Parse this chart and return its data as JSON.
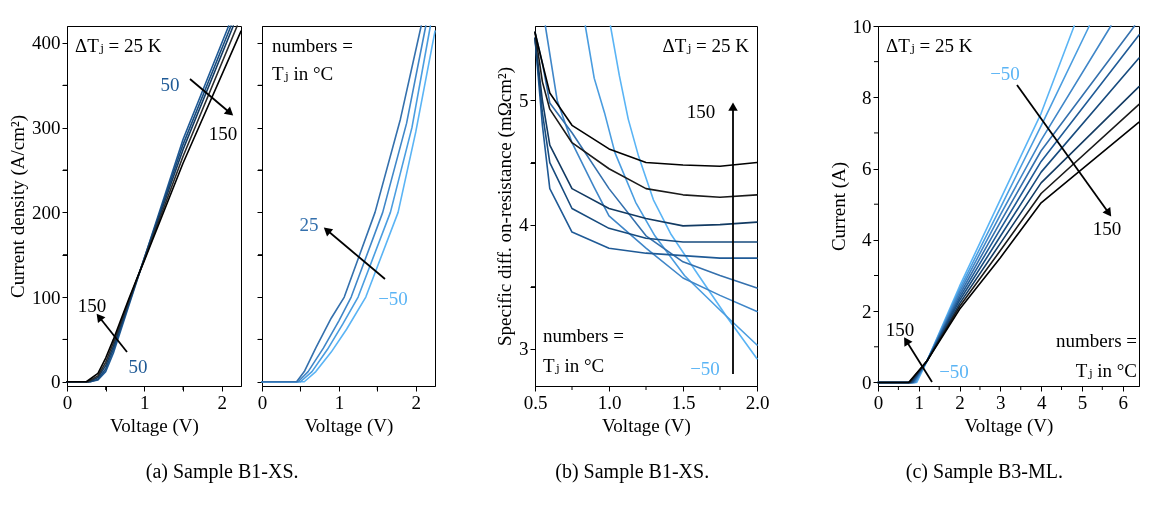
{
  "chart_data": [
    {
      "type": "line",
      "title": "(a) Sample B1-XS.",
      "xlabel": "Voltage (V)",
      "ylabel": "Current density (A/cm²)",
      "xlim": [
        0,
        2.25
      ],
      "xticks": [
        0,
        {
          "value": 0.5,
          "label": null
        },
        1,
        {
          "value": 1.5,
          "label": null
        },
        2
      ],
      "ylim": [
        -5,
        420
      ],
      "yticks": [
        0,
        {
          "value": 50,
          "label": null
        },
        100,
        {
          "value": 150,
          "label": null
        },
        200,
        {
          "value": 250,
          "label": null
        },
        300,
        {
          "value": 350,
          "label": null
        },
        400
      ],
      "series": [
        {
          "color": "#1f5a96",
          "x": [
            0,
            0.3,
            0.4,
            0.5,
            0.6,
            0.7,
            0.8,
            0.9,
            1.0,
            1.5,
            2.09
          ],
          "values": [
            0,
            0,
            2,
            12,
            34,
            62,
            90,
            118,
            146,
            286,
            420
          ]
        },
        {
          "color": "#174b7e",
          "x": [
            0,
            0.3,
            0.4,
            0.5,
            0.6,
            0.7,
            0.8,
            0.9,
            1.0,
            1.5,
            2.12
          ],
          "values": [
            0,
            0,
            3,
            15,
            38,
            65,
            92,
            119,
            146,
            280,
            420
          ]
        },
        {
          "color": "#123a62",
          "x": [
            0,
            0.28,
            0.4,
            0.5,
            0.6,
            0.7,
            0.8,
            0.9,
            1.0,
            1.5,
            2.15
          ],
          "values": [
            0,
            0,
            5,
            19,
            42,
            68,
            94,
            120,
            145,
            274,
            420
          ]
        },
        {
          "color": "#2a2a2a",
          "x": [
            0,
            0.27,
            0.4,
            0.5,
            0.6,
            0.7,
            0.8,
            0.9,
            1.0,
            1.5,
            2.2
          ],
          "values": [
            0,
            0,
            7,
            23,
            46,
            71,
            96,
            120,
            144,
            266,
            420
          ]
        },
        {
          "color": "#000000",
          "x": [
            0,
            0.25,
            0.4,
            0.5,
            0.6,
            0.7,
            0.8,
            0.9,
            1.0,
            1.5,
            2.25
          ],
          "values": [
            0,
            0,
            10,
            28,
            50,
            74,
            98,
            121,
            143,
            258,
            414
          ]
        }
      ],
      "annotations": [
        "ΔTⱼ = 25 K",
        "50",
        "150",
        "50",
        "150"
      ]
    },
    {
      "type": "line",
      "xlabel": "Voltage (V)",
      "tick_labels": "x",
      "xlim": [
        0,
        2.25
      ],
      "xticks": [
        0,
        {
          "value": 0.5,
          "label": null
        },
        1,
        {
          "value": 1.5,
          "label": null
        },
        2
      ],
      "ylim": [
        -5,
        420
      ],
      "yticks": [
        0,
        {
          "value": 50,
          "label": null
        },
        100,
        {
          "value": 150,
          "label": null
        },
        200,
        {
          "value": 250,
          "label": null
        },
        300,
        {
          "value": 350,
          "label": null
        },
        400
      ],
      "series": [
        {
          "color": "#5ab4f5",
          "x": [
            0,
            0.55,
            0.7,
            0.9,
            1.1,
            1.35,
            1.77,
            2.0,
            2.25
          ],
          "values": [
            0,
            0,
            12,
            35,
            62,
            100,
            200,
            295,
            414
          ]
        },
        {
          "color": "#4a9de0",
          "x": [
            0,
            0.5,
            0.65,
            0.85,
            1.05,
            1.25,
            1.67,
            1.95,
            2.19
          ],
          "values": [
            0,
            0,
            12,
            38,
            68,
            100,
            200,
            300,
            420
          ]
        },
        {
          "color": "#3f86c8",
          "x": [
            0,
            0.47,
            0.6,
            0.8,
            1.0,
            1.16,
            1.57,
            1.88,
            2.13
          ],
          "values": [
            0,
            0,
            12,
            40,
            72,
            100,
            200,
            305,
            420
          ]
        },
        {
          "color": "#3470ad",
          "x": [
            0,
            0.45,
            0.55,
            0.7,
            0.9,
            1.07,
            1.47,
            1.8,
            2.07
          ],
          "values": [
            0,
            0,
            12,
            40,
            75,
            100,
            200,
            310,
            420
          ]
        }
      ],
      "annotations": [
        "numbers =",
        "Tⱼ in °C",
        "−50",
        "25"
      ]
    },
    {
      "type": "line",
      "title": "(b) Sample B1-XS.",
      "xlabel": "Voltage (V)",
      "ylabel": "Specific diff. on-resistance (mΩcm²)",
      "xlim": [
        0.5,
        2.0
      ],
      "xticks": [
        0.5,
        {
          "value": 0.75,
          "label": null
        },
        {
          "value": 1,
          "label": "1.0"
        },
        {
          "value": 1.25,
          "label": null
        },
        1.5,
        {
          "value": 1.75,
          "label": null
        },
        {
          "value": 2,
          "label": "2.0"
        }
      ],
      "ylim": [
        2.7,
        5.6
      ],
      "yticks": [
        3,
        {
          "value": 3.5,
          "label": null
        },
        4,
        {
          "value": 4.5,
          "label": null
        },
        5
      ],
      "series": [
        {
          "color": "#5ab4f5",
          "x": [
            1.01,
            1.07,
            1.13,
            1.2,
            1.3,
            1.42,
            1.6,
            1.8,
            2.0
          ],
          "values": [
            5.6,
            5.2,
            4.85,
            4.55,
            4.2,
            3.92,
            3.6,
            3.25,
            2.92
          ]
        },
        {
          "color": "#4a9de0",
          "x": [
            0.84,
            0.9,
            0.97,
            1.04,
            1.18,
            1.31,
            1.51,
            1.76,
            2.0
          ],
          "values": [
            5.6,
            5.18,
            4.9,
            4.58,
            4.18,
            3.91,
            3.59,
            3.3,
            3.03
          ]
        },
        {
          "color": "#3f86c8",
          "x": [
            0.57,
            0.65,
            0.75,
            0.9,
            1.0,
            1.25,
            1.5,
            1.75,
            2.0
          ],
          "values": [
            5.6,
            5.0,
            4.66,
            4.3,
            4.07,
            3.81,
            3.57,
            3.43,
            3.3
          ]
        },
        {
          "color": "#3470ad",
          "x": [
            0.5,
            0.55,
            0.6,
            0.75,
            1.0,
            1.25,
            1.5,
            1.75,
            2.0
          ],
          "values": [
            5.55,
            5.3,
            4.98,
            4.74,
            4.29,
            3.91,
            3.7,
            3.59,
            3.49
          ]
        },
        {
          "color": "#1f5a96",
          "x": [
            0.5,
            0.55,
            0.6,
            0.75,
            1.0,
            1.25,
            1.5,
            1.75,
            2.0
          ],
          "values": [
            5.5,
            4.8,
            4.29,
            3.94,
            3.81,
            3.77,
            3.75,
            3.73,
            3.73
          ]
        },
        {
          "color": "#174b7e",
          "x": [
            0.5,
            0.55,
            0.6,
            0.75,
            1.0,
            1.25,
            1.5,
            1.75,
            2.0
          ],
          "values": [
            5.5,
            4.9,
            4.5,
            4.13,
            3.97,
            3.89,
            3.86,
            3.86,
            3.86
          ]
        },
        {
          "color": "#123a62",
          "x": [
            0.5,
            0.55,
            0.6,
            0.75,
            1.0,
            1.25,
            1.5,
            1.75,
            2.0
          ],
          "values": [
            5.5,
            5.0,
            4.64,
            4.29,
            4.13,
            4.05,
            3.99,
            4.0,
            4.02
          ]
        },
        {
          "color": "#1a1a1a",
          "x": [
            0.5,
            0.55,
            0.6,
            0.75,
            1.0,
            1.25,
            1.5,
            1.75,
            2.0
          ],
          "values": [
            5.55,
            5.15,
            4.93,
            4.66,
            4.45,
            4.29,
            4.24,
            4.22,
            4.24
          ]
        },
        {
          "color": "#000000",
          "x": [
            0.5,
            0.55,
            0.6,
            0.75,
            1.0,
            1.25,
            1.5,
            1.75,
            2.0
          ],
          "values": [
            5.55,
            5.3,
            5.06,
            4.8,
            4.61,
            4.5,
            4.48,
            4.47,
            4.5
          ]
        }
      ],
      "annotations": [
        "ΔTⱼ = 25 K",
        "numbers =",
        "Tⱼ in °C",
        "−50",
        "150"
      ]
    },
    {
      "type": "line",
      "title": "(c) Sample B3-ML.",
      "xlabel": "Voltage (V)",
      "ylabel": "Current (A)",
      "xlim": [
        0,
        6.4
      ],
      "xticks": [
        0,
        {
          "value": 0.5,
          "label": null
        },
        1,
        {
          "value": 1.5,
          "label": null
        },
        2,
        {
          "value": 2.5,
          "label": null
        },
        3,
        {
          "value": 3.5,
          "label": null
        },
        4,
        {
          "value": 4.5,
          "label": null
        },
        5,
        {
          "value": 5.5,
          "label": null
        },
        6
      ],
      "ylim": [
        -0.1,
        10
      ],
      "yticks": [
        0,
        {
          "value": 1,
          "label": null
        },
        2,
        {
          "value": 3,
          "label": null
        },
        4,
        {
          "value": 5,
          "label": null
        },
        6,
        {
          "value": 7,
          "label": null
        },
        8,
        {
          "value": 9,
          "label": null
        },
        10
      ],
      "series": [
        {
          "color": "#5ab4f5",
          "x": [
            0,
            0.95,
            1.2,
            2,
            3,
            4,
            4.81
          ],
          "values": [
            0,
            0,
            0.6,
            2.7,
            5.13,
            7.55,
            10
          ]
        },
        {
          "color": "#4a9de0",
          "x": [
            0,
            0.92,
            1.2,
            2,
            3,
            4,
            5.18
          ],
          "values": [
            0,
            0,
            0.6,
            2.62,
            4.9,
            7.2,
            10
          ]
        },
        {
          "color": "#3f86c8",
          "x": [
            0,
            0.9,
            1.2,
            2,
            3,
            4,
            5.71
          ],
          "values": [
            0,
            0,
            0.6,
            2.54,
            4.7,
            6.8,
            10
          ]
        },
        {
          "color": "#3470ad",
          "x": [
            0,
            0.87,
            1.2,
            2,
            3,
            4,
            6.29
          ],
          "values": [
            0,
            0,
            0.6,
            2.46,
            4.5,
            6.5,
            10
          ]
        },
        {
          "color": "#1f5a96",
          "x": [
            0,
            0.85,
            1.2,
            2,
            3,
            4,
            6.4
          ],
          "values": [
            0,
            0,
            0.6,
            2.38,
            4.3,
            6.2,
            9.75
          ]
        },
        {
          "color": "#174b7e",
          "x": [
            0,
            0.82,
            1.2,
            2,
            3,
            4,
            6.4
          ],
          "values": [
            0,
            0,
            0.6,
            2.3,
            4.1,
            5.9,
            9.1
          ]
        },
        {
          "color": "#123a62",
          "x": [
            0,
            0.8,
            1.2,
            2,
            3,
            4,
            6.4
          ],
          "values": [
            0,
            0,
            0.6,
            2.21,
            3.9,
            5.6,
            8.3
          ]
        },
        {
          "color": "#1a1a1a",
          "x": [
            0,
            0.77,
            1.2,
            2,
            3,
            4,
            6.4
          ],
          "values": [
            0,
            0,
            0.6,
            2.13,
            3.7,
            5.3,
            7.8
          ]
        },
        {
          "color": "#000000",
          "x": [
            0,
            0.75,
            1.2,
            2,
            3,
            4,
            6.4
          ],
          "values": [
            0,
            0,
            0.6,
            2.05,
            3.5,
            5.04,
            7.3
          ]
        }
      ],
      "annotations": [
        "ΔTⱼ = 25 K",
        "numbers =",
        "Tⱼ in °C",
        "−50",
        "150",
        "−50",
        "150"
      ]
    }
  ]
}
